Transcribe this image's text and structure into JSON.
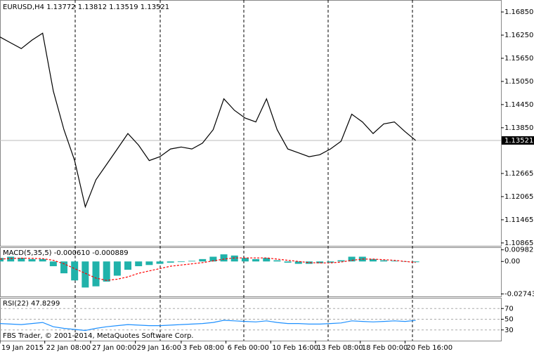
{
  "chart_data": [
    {
      "type": "line",
      "title": "EURUSD,H4 1.13772 1.13812 1.13519 1.13521",
      "series": [
        {
          "name": "EURUSD",
          "color": "#000000",
          "values": [
            1.162,
            1.1605,
            1.159,
            1.1612,
            1.163,
            1.148,
            1.138,
            1.13,
            1.118,
            1.125,
            1.129,
            1.133,
            1.137,
            1.134,
            1.13,
            1.131,
            1.133,
            1.1335,
            1.133,
            1.1345,
            1.138,
            1.146,
            1.143,
            1.141,
            1.14,
            1.146,
            1.138,
            1.133,
            1.132,
            1.131,
            1.1315,
            1.133,
            1.135,
            1.142,
            1.14,
            1.137,
            1.1395,
            1.14,
            1.1375,
            1.13521
          ]
        }
      ],
      "last_price": 1.13521,
      "ylim": [
        1.1079,
        1.1716
      ],
      "yticks": [
        {
          "value": 1.1685,
          "label": "1.16850"
        },
        {
          "value": 1.1625,
          "label": "1.16250"
        },
        {
          "value": 1.1565,
          "label": "1.15650"
        },
        {
          "value": 1.1505,
          "label": "1.15050"
        },
        {
          "value": 1.1445,
          "label": "1.14450"
        },
        {
          "value": 1.1385,
          "label": "1.13850"
        },
        1.12665,
        1.12065,
        1.11465,
        1.10865
      ],
      "xlim": [
        0,
        47
      ],
      "xticks": [
        {
          "value": 0,
          "label": "19 Jan 2015"
        },
        {
          "value": 4.2,
          "label": "22 Jan 08:00"
        },
        {
          "value": 8.5,
          "label": "27 Jan 00:00"
        },
        {
          "value": 12.7,
          "label": "29 Jan 16:00"
        },
        {
          "value": 17,
          "label": "3 Feb 08:00"
        },
        {
          "value": 21.2,
          "label": "6 Feb 00:00"
        },
        {
          "value": 25.4,
          "label": "10 Feb 16:00"
        },
        {
          "value": 29.6,
          "label": "13 Feb 08:00"
        },
        {
          "value": 33.8,
          "label": "18 Feb 00:00"
        },
        {
          "value": 38,
          "label": "20 Feb 16:00"
        }
      ]
    },
    {
      "type": "bar",
      "title": "MACD(5,35,5) -0.000610 -0.000889",
      "series": [
        {
          "name": "MACD",
          "color": "#20b2aa",
          "values": [
            0.003,
            0.004,
            0.003,
            0.002,
            0.002,
            -0.004,
            -0.01,
            -0.016,
            -0.022,
            -0.021,
            -0.017,
            -0.012,
            -0.007,
            -0.004,
            -0.003,
            -0.002,
            -0.001,
            -0.0005,
            0.0005,
            0.002,
            0.004,
            0.006,
            0.005,
            0.003,
            0.002,
            0.003,
            0.001,
            -0.001,
            -0.002,
            -0.002,
            -0.0015,
            -0.001,
            0.001,
            0.004,
            0.004,
            0.002,
            0.001,
            0.0005,
            -0.0003,
            -0.00061
          ]
        },
        {
          "name": "Signal",
          "color": "#ff0000",
          "values": [
            0.002,
            0.0025,
            0.0028,
            0.0026,
            0.0024,
            0.001,
            -0.002,
            -0.006,
            -0.01,
            -0.014,
            -0.016,
            -0.015,
            -0.013,
            -0.01,
            -0.008,
            -0.006,
            -0.004,
            -0.003,
            -0.002,
            -0.001,
            0.0005,
            0.002,
            0.003,
            0.003,
            0.003,
            0.003,
            0.002,
            0.001,
            0,
            -0.001,
            -0.0012,
            -0.0012,
            -0.0005,
            0.001,
            0.002,
            0.002,
            0.0015,
            0.001,
            0,
            -0.000889
          ]
        }
      ],
      "ylim": [
        -0.0295,
        0.012
      ],
      "yticks": [
        0.009825,
        {
          "value": 0,
          "label": "0.00"
        },
        -0.027432
      ]
    },
    {
      "type": "line",
      "title": "RSI(22) 47.8299",
      "series": [
        {
          "name": "RSI",
          "color": "#1e90ff",
          "values": [
            42,
            41,
            40,
            42,
            44,
            36,
            33,
            31,
            29,
            33,
            36,
            38,
            40,
            39,
            38,
            38,
            39,
            40,
            41,
            42,
            44,
            48,
            47,
            46,
            45,
            47,
            44,
            42,
            42,
            41,
            41,
            42,
            43,
            47,
            46,
            45,
            46,
            47,
            46,
            47.8299
          ]
        }
      ],
      "ylim": [
        10,
        90
      ],
      "yticks": [
        70,
        50,
        30
      ],
      "grid": true
    }
  ],
  "footer": "FBS Trader, © 2001-2014, MetaQuotes Software Corp."
}
